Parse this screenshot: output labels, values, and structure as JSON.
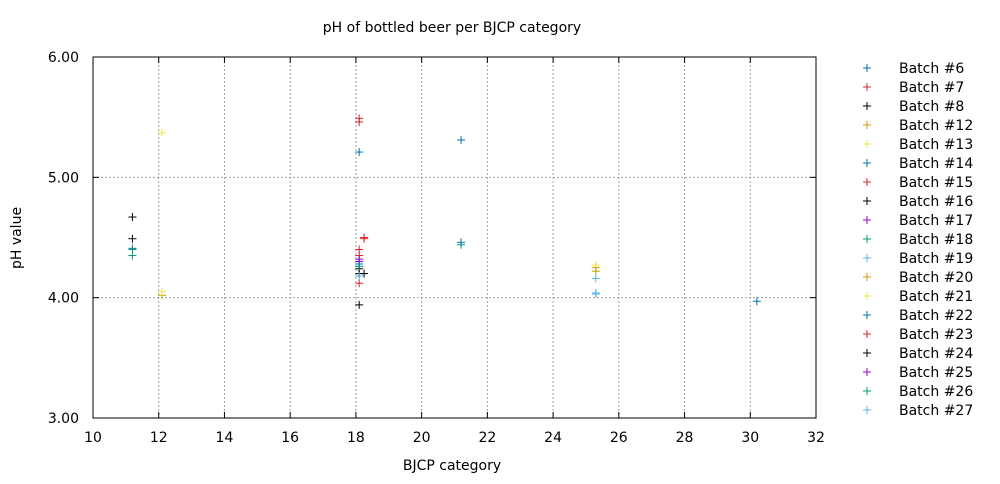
{
  "chart_data": {
    "type": "scatter",
    "title": "pH of bottled beer per BJCP category",
    "xlabel": "BJCP category",
    "ylabel": "pH value",
    "xlim": [
      10,
      32
    ],
    "ylim": [
      3,
      6
    ],
    "x_ticks": [
      "10",
      "12",
      "14",
      "16",
      "18",
      "20",
      "22",
      "24",
      "26",
      "28",
      "30",
      "32"
    ],
    "y_ticks": [
      "3.00",
      "4.00",
      "5.00",
      "6.00"
    ],
    "grid": true,
    "legend_position": "outside-right",
    "marker": "+",
    "series": [
      {
        "name": "Batch #6",
        "color": "#0072b2",
        "points": [
          [
            18.1,
            4.28
          ],
          [
            30.2,
            3.97
          ]
        ]
      },
      {
        "name": "Batch #7",
        "color": "#d62728",
        "points": [
          [
            18.1,
            5.49
          ],
          [
            18.1,
            5.46
          ]
        ]
      },
      {
        "name": "Batch #8",
        "color": "#000000",
        "points": [
          [
            11.2,
            4.67
          ],
          [
            18.1,
            3.94
          ]
        ]
      },
      {
        "name": "Batch #12",
        "color": "#c9a000",
        "points": [
          [
            12.1,
            4.02
          ],
          [
            25.3,
            4.25
          ]
        ]
      },
      {
        "name": "Batch #13",
        "color": "#f0e442",
        "points": [
          [
            12.1,
            5.37
          ],
          [
            25.3,
            4.27
          ]
        ]
      },
      {
        "name": "Batch #14",
        "color": "#0072b2",
        "points": [
          [
            18.1,
            5.21
          ],
          [
            21.2,
            5.31
          ]
        ]
      },
      {
        "name": "Batch #15",
        "color": "#d62728",
        "points": [
          [
            18.1,
            4.12
          ],
          [
            18.1,
            4.35
          ],
          [
            18.25,
            4.49
          ]
        ]
      },
      {
        "name": "Batch #16",
        "color": "#000000",
        "points": [
          [
            11.2,
            4.49
          ],
          [
            18.1,
            4.2
          ]
        ]
      },
      {
        "name": "Batch #17",
        "color": "#9400d3",
        "points": [
          [
            18.1,
            4.3
          ]
        ]
      },
      {
        "name": "Batch #18",
        "color": "#009e73",
        "points": [
          [
            11.2,
            4.35
          ],
          [
            21.2,
            4.44
          ]
        ]
      },
      {
        "name": "Batch #19",
        "color": "#56b4e9",
        "points": [
          [
            25.3,
            4.03
          ],
          [
            25.3,
            4.16
          ]
        ]
      },
      {
        "name": "Batch #20",
        "color": "#c9a000",
        "points": [
          [
            25.3,
            4.22
          ]
        ]
      },
      {
        "name": "Batch #21",
        "color": "#f0e442",
        "points": [
          [
            12.1,
            4.05
          ]
        ]
      },
      {
        "name": "Batch #22",
        "color": "#0072b2",
        "points": [
          [
            11.2,
            4.41
          ],
          [
            21.2,
            4.46
          ]
        ]
      },
      {
        "name": "Batch #23",
        "color": "#d62728",
        "points": [
          [
            18.1,
            4.4
          ],
          [
            18.25,
            4.5
          ]
        ]
      },
      {
        "name": "Batch #24",
        "color": "#000000",
        "points": [
          [
            18.1,
            4.24
          ],
          [
            18.25,
            4.2
          ]
        ]
      },
      {
        "name": "Batch #25",
        "color": "#9400d3",
        "points": [
          [
            18.1,
            4.32
          ]
        ]
      },
      {
        "name": "Batch #26",
        "color": "#009e73",
        "points": [
          [
            11.2,
            4.4
          ],
          [
            18.1,
            4.26
          ]
        ]
      },
      {
        "name": "Batch #27",
        "color": "#56b4e9",
        "points": [
          [
            25.3,
            4.04
          ],
          [
            18.1,
            4.18
          ]
        ]
      }
    ]
  }
}
